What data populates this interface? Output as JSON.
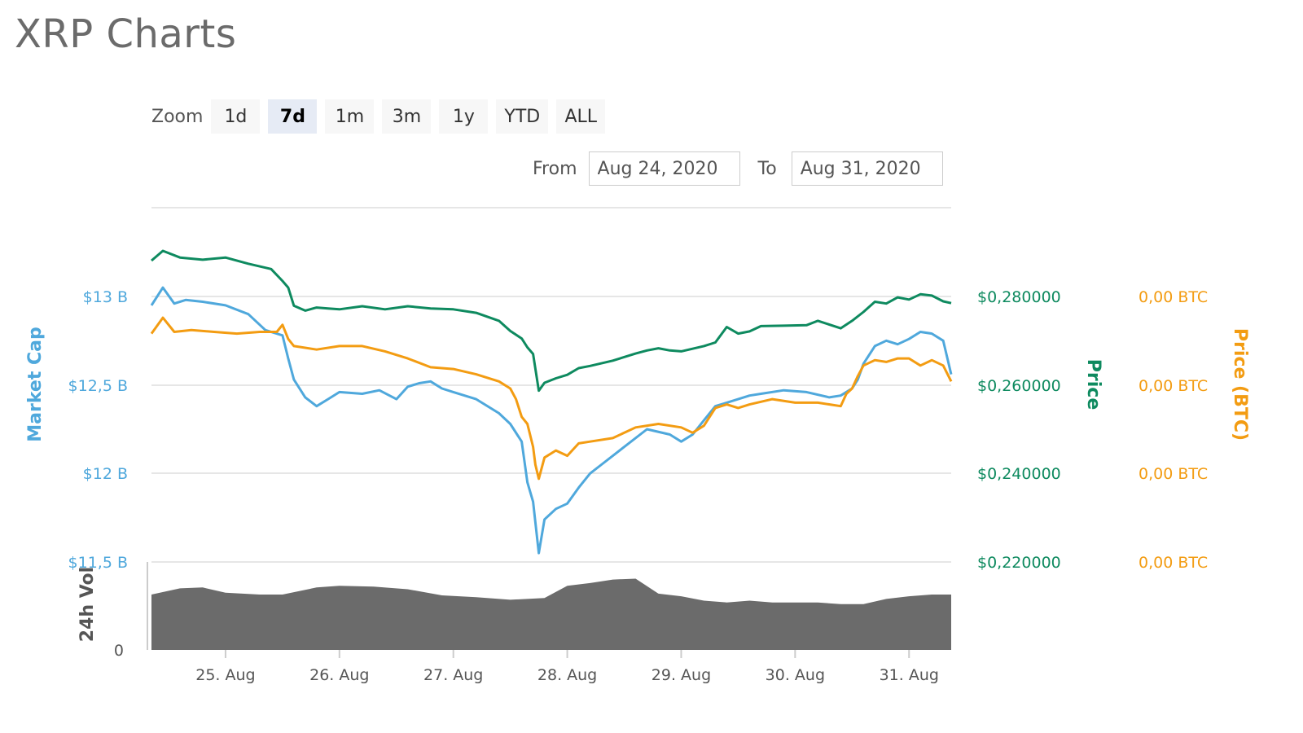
{
  "page": {
    "title": "XRP Charts"
  },
  "zoom": {
    "label": "Zoom",
    "buttons": [
      "1d",
      "7d",
      "1m",
      "3m",
      "1y",
      "YTD",
      "ALL"
    ],
    "active": "7d"
  },
  "range": {
    "from_label": "From",
    "from_value": "Aug 24, 2020",
    "to_label": "To",
    "to_value": "Aug 31, 2020"
  },
  "colors": {
    "market_cap": "#4fa8dc",
    "price_usd": "#0e8a5f",
    "price_btc": "#f39c12",
    "volume": "#6b6b6b",
    "grid": "#e6e6e6"
  },
  "chart_data": {
    "type": "line",
    "x_unit": "day (Aug 2020)",
    "xlim": [
      24.35,
      31.37
    ],
    "x_ticks": [
      25,
      26,
      27,
      28,
      29,
      30,
      31
    ],
    "x_tick_labels": [
      "25. Aug",
      "26. Aug",
      "27. Aug",
      "28. Aug",
      "29. Aug",
      "30. Aug",
      "31. Aug"
    ],
    "y_axes": {
      "left": {
        "title": "Market Cap",
        "ylim": [
          11.5,
          13.0
        ],
        "ticks": [
          13.0,
          12.5,
          12.0,
          11.5
        ],
        "tick_labels": [
          "$13 B",
          "$12,5 B",
          "$12 B",
          "$11,5 B"
        ]
      },
      "right_price": {
        "title": "Price",
        "ylim": [
          0.22,
          0.28
        ],
        "ticks": [
          0.28,
          0.26,
          0.24,
          0.22
        ],
        "tick_labels": [
          "$0,280000",
          "$0,260000",
          "$0,240000",
          "$0,220000"
        ]
      },
      "right_btc": {
        "title": "Price (BTC)",
        "tick_labels": [
          "0,00 BTC",
          "0,00 BTC",
          "0,00 BTC",
          "0,00 BTC"
        ]
      },
      "volume": {
        "title": "24h Vol",
        "tick_labels": [
          "0"
        ]
      }
    },
    "series": [
      {
        "name": "Market Cap",
        "axis": "left",
        "x": [
          24.35,
          24.45,
          24.55,
          24.65,
          24.8,
          25.0,
          25.2,
          25.35,
          25.5,
          25.55,
          25.6,
          25.7,
          25.8,
          25.9,
          26.0,
          26.2,
          26.35,
          26.5,
          26.6,
          26.7,
          26.8,
          26.9,
          27.0,
          27.2,
          27.4,
          27.5,
          27.6,
          27.65,
          27.7,
          27.75,
          27.8,
          27.9,
          28.0,
          28.1,
          28.2,
          28.3,
          28.5,
          28.7,
          28.9,
          29.0,
          29.1,
          29.2,
          29.3,
          29.4,
          29.5,
          29.6,
          29.7,
          29.9,
          30.1,
          30.3,
          30.4,
          30.5,
          30.55,
          30.6,
          30.7,
          30.8,
          30.9,
          31.0,
          31.1,
          31.2,
          31.3,
          31.37
        ],
        "y": [
          12.95,
          13.05,
          12.96,
          12.98,
          12.97,
          12.95,
          12.9,
          12.81,
          12.78,
          12.65,
          12.53,
          12.43,
          12.38,
          12.42,
          12.46,
          12.45,
          12.47,
          12.42,
          12.49,
          12.51,
          12.52,
          12.48,
          12.46,
          12.42,
          12.34,
          12.28,
          12.18,
          11.95,
          11.84,
          11.55,
          11.74,
          11.8,
          11.83,
          11.92,
          12.0,
          12.05,
          12.15,
          12.25,
          12.22,
          12.18,
          12.22,
          12.3,
          12.38,
          12.4,
          12.42,
          12.44,
          12.45,
          12.47,
          12.46,
          12.43,
          12.44,
          12.48,
          12.53,
          12.62,
          12.72,
          12.75,
          12.73,
          12.76,
          12.8,
          12.79,
          12.75,
          12.56
        ]
      },
      {
        "name": "Price",
        "axis": "right_price",
        "x": [
          24.35,
          24.45,
          24.6,
          24.8,
          25.0,
          25.2,
          25.4,
          25.5,
          25.55,
          25.6,
          25.7,
          25.8,
          25.9,
          26.0,
          26.2,
          26.4,
          26.6,
          26.8,
          27.0,
          27.2,
          27.4,
          27.5,
          27.6,
          27.65,
          27.7,
          27.75,
          27.8,
          27.9,
          28.0,
          28.1,
          28.2,
          28.4,
          28.6,
          28.7,
          28.8,
          28.9,
          29.0,
          29.2,
          29.3,
          29.4,
          29.5,
          29.6,
          29.7,
          29.9,
          30.1,
          30.2,
          30.4,
          30.5,
          30.6,
          30.7,
          30.8,
          30.9,
          31.0,
          31.1,
          31.2,
          31.3,
          31.37
        ],
        "y": [
          0.2881,
          0.2903,
          0.2888,
          0.2883,
          0.2888,
          0.2874,
          0.2862,
          0.2835,
          0.282,
          0.2779,
          0.2768,
          0.2775,
          0.2773,
          0.2771,
          0.2778,
          0.2771,
          0.2778,
          0.2773,
          0.2771,
          0.2763,
          0.2745,
          0.2722,
          0.2705,
          0.2685,
          0.267,
          0.2587,
          0.2605,
          0.2615,
          0.2623,
          0.2638,
          0.2643,
          0.2655,
          0.2671,
          0.2678,
          0.2683,
          0.2678,
          0.2676,
          0.2688,
          0.2696,
          0.2731,
          0.2716,
          0.2721,
          0.2733,
          0.2734,
          0.2735,
          0.2745,
          0.2728,
          0.2745,
          0.2765,
          0.2788,
          0.2784,
          0.2798,
          0.2793,
          0.2805,
          0.2802,
          0.2789,
          0.2785
        ]
      },
      {
        "name": "Price (BTC)",
        "axis": "right_btc",
        "x": [
          24.35,
          24.45,
          24.55,
          24.7,
          24.9,
          25.1,
          25.3,
          25.45,
          25.5,
          25.55,
          25.6,
          25.8,
          26.0,
          26.2,
          26.4,
          26.6,
          26.8,
          27.0,
          27.2,
          27.4,
          27.5,
          27.55,
          27.6,
          27.65,
          27.7,
          27.72,
          27.75,
          27.8,
          27.9,
          28.0,
          28.1,
          28.2,
          28.4,
          28.6,
          28.8,
          29.0,
          29.1,
          29.2,
          29.3,
          29.4,
          29.5,
          29.6,
          29.8,
          30.0,
          30.2,
          30.4,
          30.45,
          30.5,
          30.55,
          30.6,
          30.7,
          30.8,
          30.9,
          31.0,
          31.1,
          31.2,
          31.3,
          31.37
        ],
        "y": [
          12.79,
          12.88,
          12.8,
          12.81,
          12.8,
          12.79,
          12.8,
          12.8,
          12.84,
          12.76,
          12.72,
          12.7,
          12.72,
          12.72,
          12.69,
          12.65,
          12.6,
          12.59,
          12.56,
          12.52,
          12.48,
          12.42,
          12.32,
          12.28,
          12.15,
          12.05,
          11.97,
          12.09,
          12.13,
          12.1,
          12.17,
          12.18,
          12.2,
          12.26,
          12.28,
          12.26,
          12.23,
          12.27,
          12.37,
          12.39,
          12.37,
          12.39,
          12.42,
          12.4,
          12.4,
          12.38,
          12.45,
          12.48,
          12.55,
          12.61,
          12.64,
          12.63,
          12.65,
          12.65,
          12.61,
          12.64,
          12.61,
          12.52
        ]
      },
      {
        "name": "24h Vol",
        "axis": "volume",
        "type": "area",
        "x": [
          24.35,
          24.6,
          24.8,
          25.0,
          25.3,
          25.5,
          25.8,
          26.0,
          26.3,
          26.6,
          26.9,
          27.2,
          27.5,
          27.8,
          28.0,
          28.2,
          28.4,
          28.6,
          28.8,
          29.0,
          29.2,
          29.4,
          29.6,
          29.8,
          30.0,
          30.2,
          30.4,
          30.6,
          30.8,
          31.0,
          31.2,
          31.37
        ],
        "y": [
          0.63,
          0.7,
          0.71,
          0.65,
          0.63,
          0.63,
          0.71,
          0.73,
          0.72,
          0.69,
          0.62,
          0.6,
          0.57,
          0.59,
          0.73,
          0.76,
          0.8,
          0.81,
          0.64,
          0.61,
          0.56,
          0.54,
          0.56,
          0.54,
          0.54,
          0.54,
          0.52,
          0.52,
          0.58,
          0.61,
          0.63,
          0.63
        ]
      }
    ],
    "legend": "none",
    "grid": true
  }
}
